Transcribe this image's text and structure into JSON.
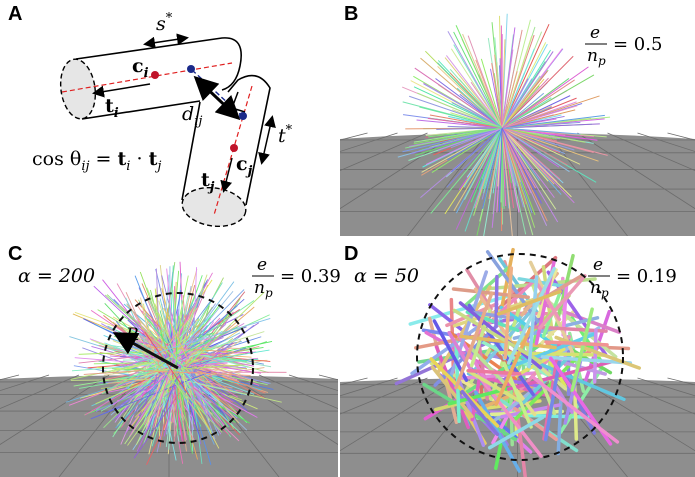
{
  "panel_a": {
    "label": "A",
    "s": "s",
    "s_sup": "*",
    "c_i": "c",
    "c_i_sub": "i",
    "t_i": "t",
    "t_i_sub": "i",
    "d": "d",
    "d_sub": "ij",
    "t_star": "t",
    "t_star_sup": "*",
    "c_j": "c",
    "c_j_sub": "j",
    "t_j": "t",
    "t_j_sub": "j",
    "formula_lhs": "cos θ",
    "formula_lhs_sub": "ij",
    "formula_eq": " = ",
    "formula_t1": "t",
    "formula_t1_sub": "i",
    "formula_dot": " · ",
    "formula_t2": "t",
    "formula_t2_sub": "j"
  },
  "panel_b": {
    "label": "B",
    "numerator": "e",
    "denominator": "n",
    "denominator_sub": "p",
    "value": "= 0.5"
  },
  "panel_c": {
    "label": "C",
    "alpha": "α = 200",
    "numerator": "e",
    "denominator": "n",
    "denominator_sub": "p",
    "value": "= 0.39",
    "radius": "R"
  },
  "panel_d": {
    "label": "D",
    "alpha": "α = 50",
    "numerator": "e",
    "denominator": "n",
    "denominator_sub": "p",
    "value": "= 0.19"
  }
}
